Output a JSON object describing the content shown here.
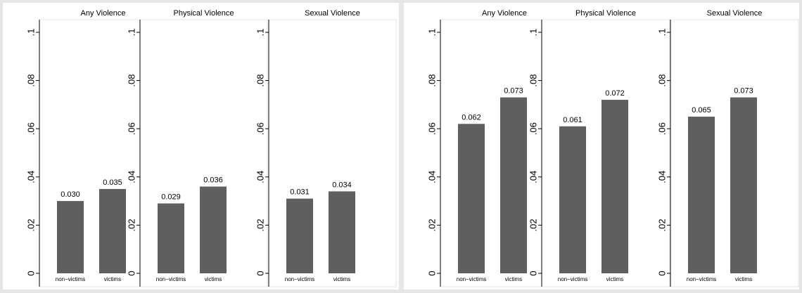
{
  "chart_data": [
    {
      "type": "bar",
      "title": "",
      "bar_color": "#5f5f5f",
      "ylim": [
        0,
        0.1
      ],
      "y_ticks": [
        "0",
        ".02",
        ".04",
        ".06",
        ".08",
        ".1"
      ],
      "y_tick_values": [
        0,
        0.02,
        0.04,
        0.06,
        0.08,
        0.1
      ],
      "grid": false,
      "subplots": [
        {
          "title": "Any Violence",
          "categories": [
            "non−victims",
            "victims"
          ],
          "values": [
            0.03,
            0.035
          ],
          "labels": [
            "0.030",
            "0.035"
          ]
        },
        {
          "title": "Physical Violence",
          "categories": [
            "non−victims",
            "victims"
          ],
          "values": [
            0.029,
            0.036
          ],
          "labels": [
            "0.029",
            "0.036"
          ]
        },
        {
          "title": "Sexual Violence",
          "categories": [
            "non−victims",
            "victims"
          ],
          "values": [
            0.031,
            0.034
          ],
          "labels": [
            "0.031",
            "0.034"
          ]
        }
      ]
    },
    {
      "type": "bar",
      "title": "",
      "bar_color": "#5f5f5f",
      "ylim": [
        0,
        0.1
      ],
      "y_ticks": [
        "0",
        ".02",
        ".04",
        ".06",
        ".08",
        ".1"
      ],
      "y_tick_values": [
        0,
        0.02,
        0.04,
        0.06,
        0.08,
        0.1
      ],
      "grid": false,
      "subplots": [
        {
          "title": "Any Violence",
          "categories": [
            "non−victims",
            "victims"
          ],
          "values": [
            0.062,
            0.073
          ],
          "labels": [
            "0.062",
            "0.073"
          ]
        },
        {
          "title": "Physical Violence",
          "categories": [
            "non−victims",
            "victims"
          ],
          "values": [
            0.061,
            0.072
          ],
          "labels": [
            "0.061",
            "0.072"
          ]
        },
        {
          "title": "Sexual Violence",
          "categories": [
            "non−victims",
            "victims"
          ],
          "values": [
            0.065,
            0.073
          ],
          "labels": [
            "0.065",
            "0.073"
          ]
        }
      ]
    }
  ]
}
